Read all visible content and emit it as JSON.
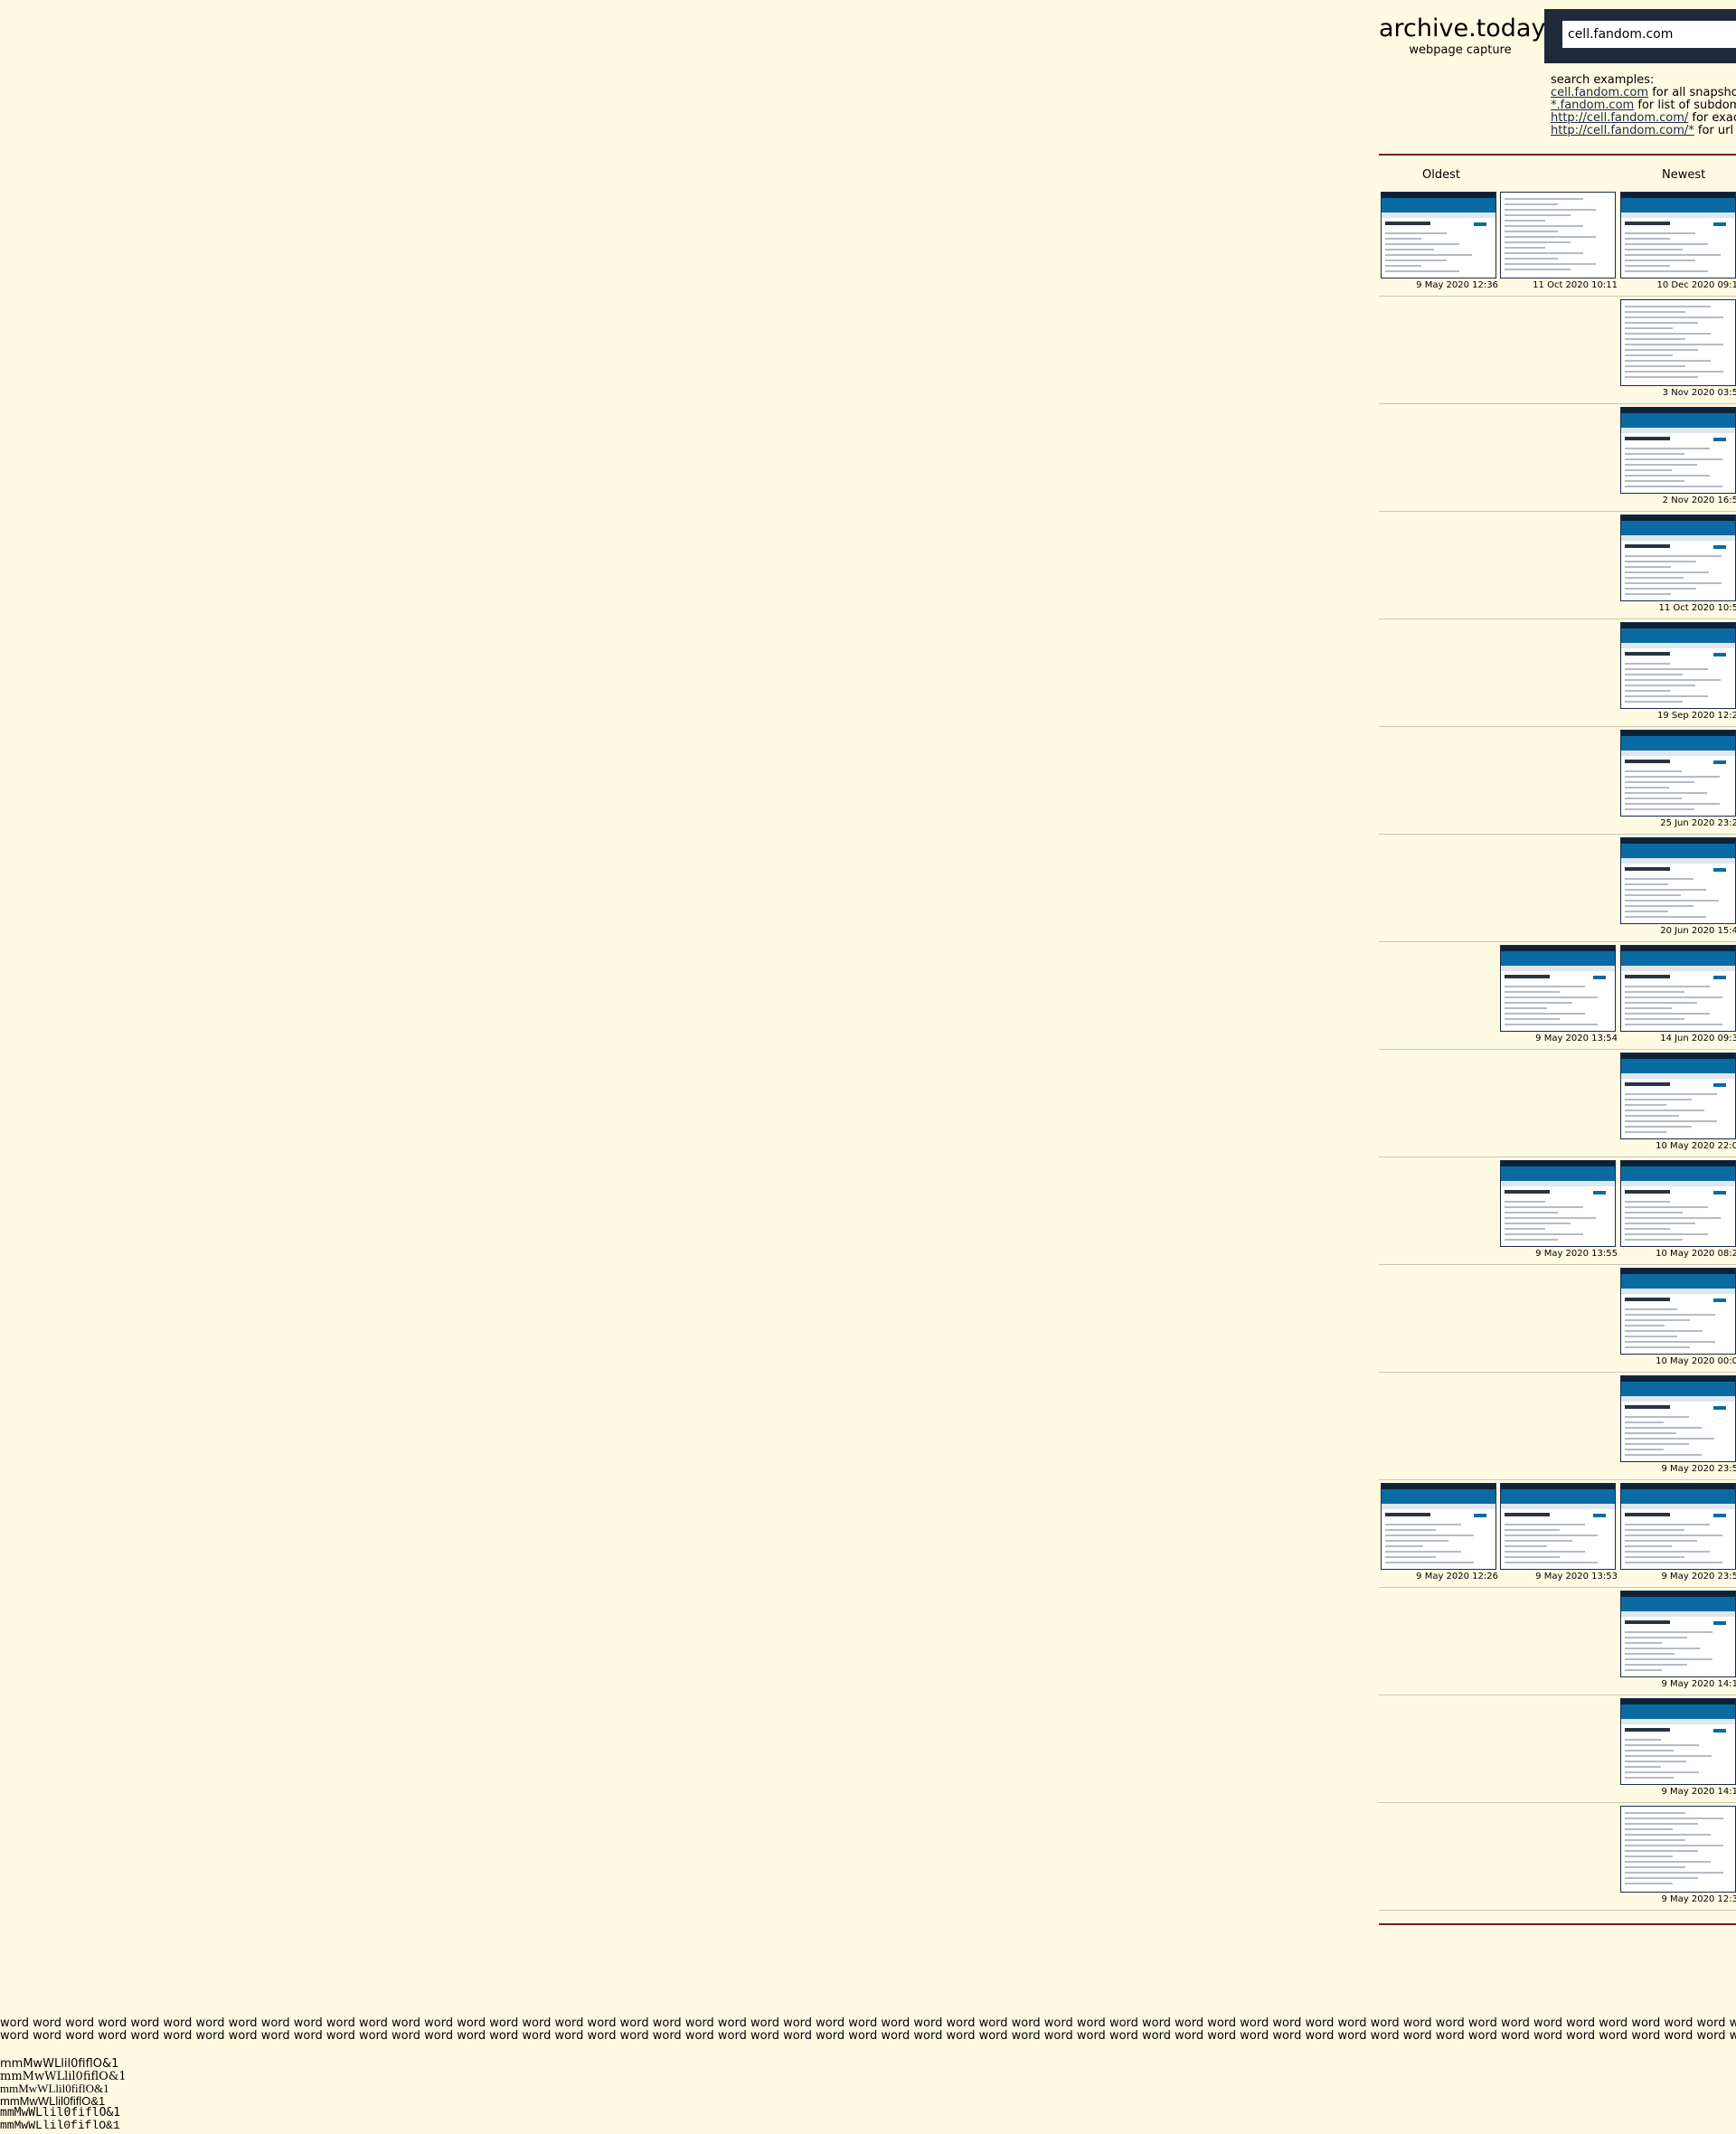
{
  "header": {
    "title": "archive.today",
    "subtitle": "webpage capture",
    "search_value": "cell.fandom.com"
  },
  "examples": {
    "heading": "search examples:",
    "items": [
      {
        "link": "cell.fandom.com",
        "text": " for all snapshots"
      },
      {
        "link": "*.fandom.com",
        "text": " for list of subdomai"
      },
      {
        "link": "http://cell.fandom.com/",
        "text": " for exact u"
      },
      {
        "link": "http://cell.fandom.com/*",
        "text": " for url pre"
      }
    ]
  },
  "columns": {
    "oldest": "Oldest",
    "newest": "Newest"
  },
  "rows": [
    {
      "cells": [
        {
          "slot": 0,
          "date": "9 May 2020 12:36"
        },
        {
          "slot": 1,
          "date": "11 Oct 2020 10:11",
          "plain": true
        },
        {
          "slot": 2,
          "date": "10 Dec 2020 09:1"
        }
      ]
    },
    {
      "cells": [
        {
          "slot": 2,
          "date": "3 Nov 2020 03:5",
          "plain": true
        }
      ]
    },
    {
      "cells": [
        {
          "slot": 2,
          "date": "2 Nov 2020 16:5"
        }
      ]
    },
    {
      "cells": [
        {
          "slot": 2,
          "date": "11 Oct 2020 10:5"
        }
      ]
    },
    {
      "cells": [
        {
          "slot": 2,
          "date": "19 Sep 2020 12:2"
        }
      ]
    },
    {
      "cells": [
        {
          "slot": 2,
          "date": "25 Jun 2020 23:2"
        }
      ]
    },
    {
      "cells": [
        {
          "slot": 2,
          "date": "20 Jun 2020 15:4"
        }
      ]
    },
    {
      "cells": [
        {
          "slot": 1,
          "date": "9 May 2020 13:54"
        },
        {
          "slot": 2,
          "date": "14 Jun 2020 09:3"
        }
      ]
    },
    {
      "cells": [
        {
          "slot": 2,
          "date": "10 May 2020 22:0"
        }
      ]
    },
    {
      "cells": [
        {
          "slot": 1,
          "date": "9 May 2020 13:55"
        },
        {
          "slot": 2,
          "date": "10 May 2020 08:2"
        }
      ]
    },
    {
      "cells": [
        {
          "slot": 2,
          "date": "10 May 2020 00:0"
        }
      ]
    },
    {
      "cells": [
        {
          "slot": 2,
          "date": "9 May 2020 23:5"
        }
      ]
    },
    {
      "cells": [
        {
          "slot": 0,
          "date": "9 May 2020 12:26"
        },
        {
          "slot": 1,
          "date": "9 May 2020 13:53"
        },
        {
          "slot": 2,
          "date": "9 May 2020 23:5"
        }
      ]
    },
    {
      "cells": [
        {
          "slot": 2,
          "date": "9 May 2020 14:1"
        }
      ]
    },
    {
      "cells": [
        {
          "slot": 2,
          "date": "9 May 2020 14:1"
        }
      ]
    },
    {
      "cells": [
        {
          "slot": 2,
          "date": "9 May 2020 12:3",
          "plain": true
        }
      ]
    }
  ],
  "footer": {
    "filler_line": "word word word word word word word word word word word word word word word word word word word word word word word word word word word word word word word word word word word word word word word word word word word word word word word word word word word word word word word word word word word word word word word word word word word word word word word word word word word word word word word word word word word word word word word word word word word word word word word word word word word word word word word word word word word word word",
    "mono_lines": [
      "mmMwWLlil0fiflO&1",
      "mmMwWLlil0fiflO&1",
      "mmMwWLlil0fiflO&1",
      "mmMwWLlil0fiflO&1",
      "mmMwWLlil0fiflO&1",
      "mmMwWLlil0fiflO&1"
    ]
  }
}
